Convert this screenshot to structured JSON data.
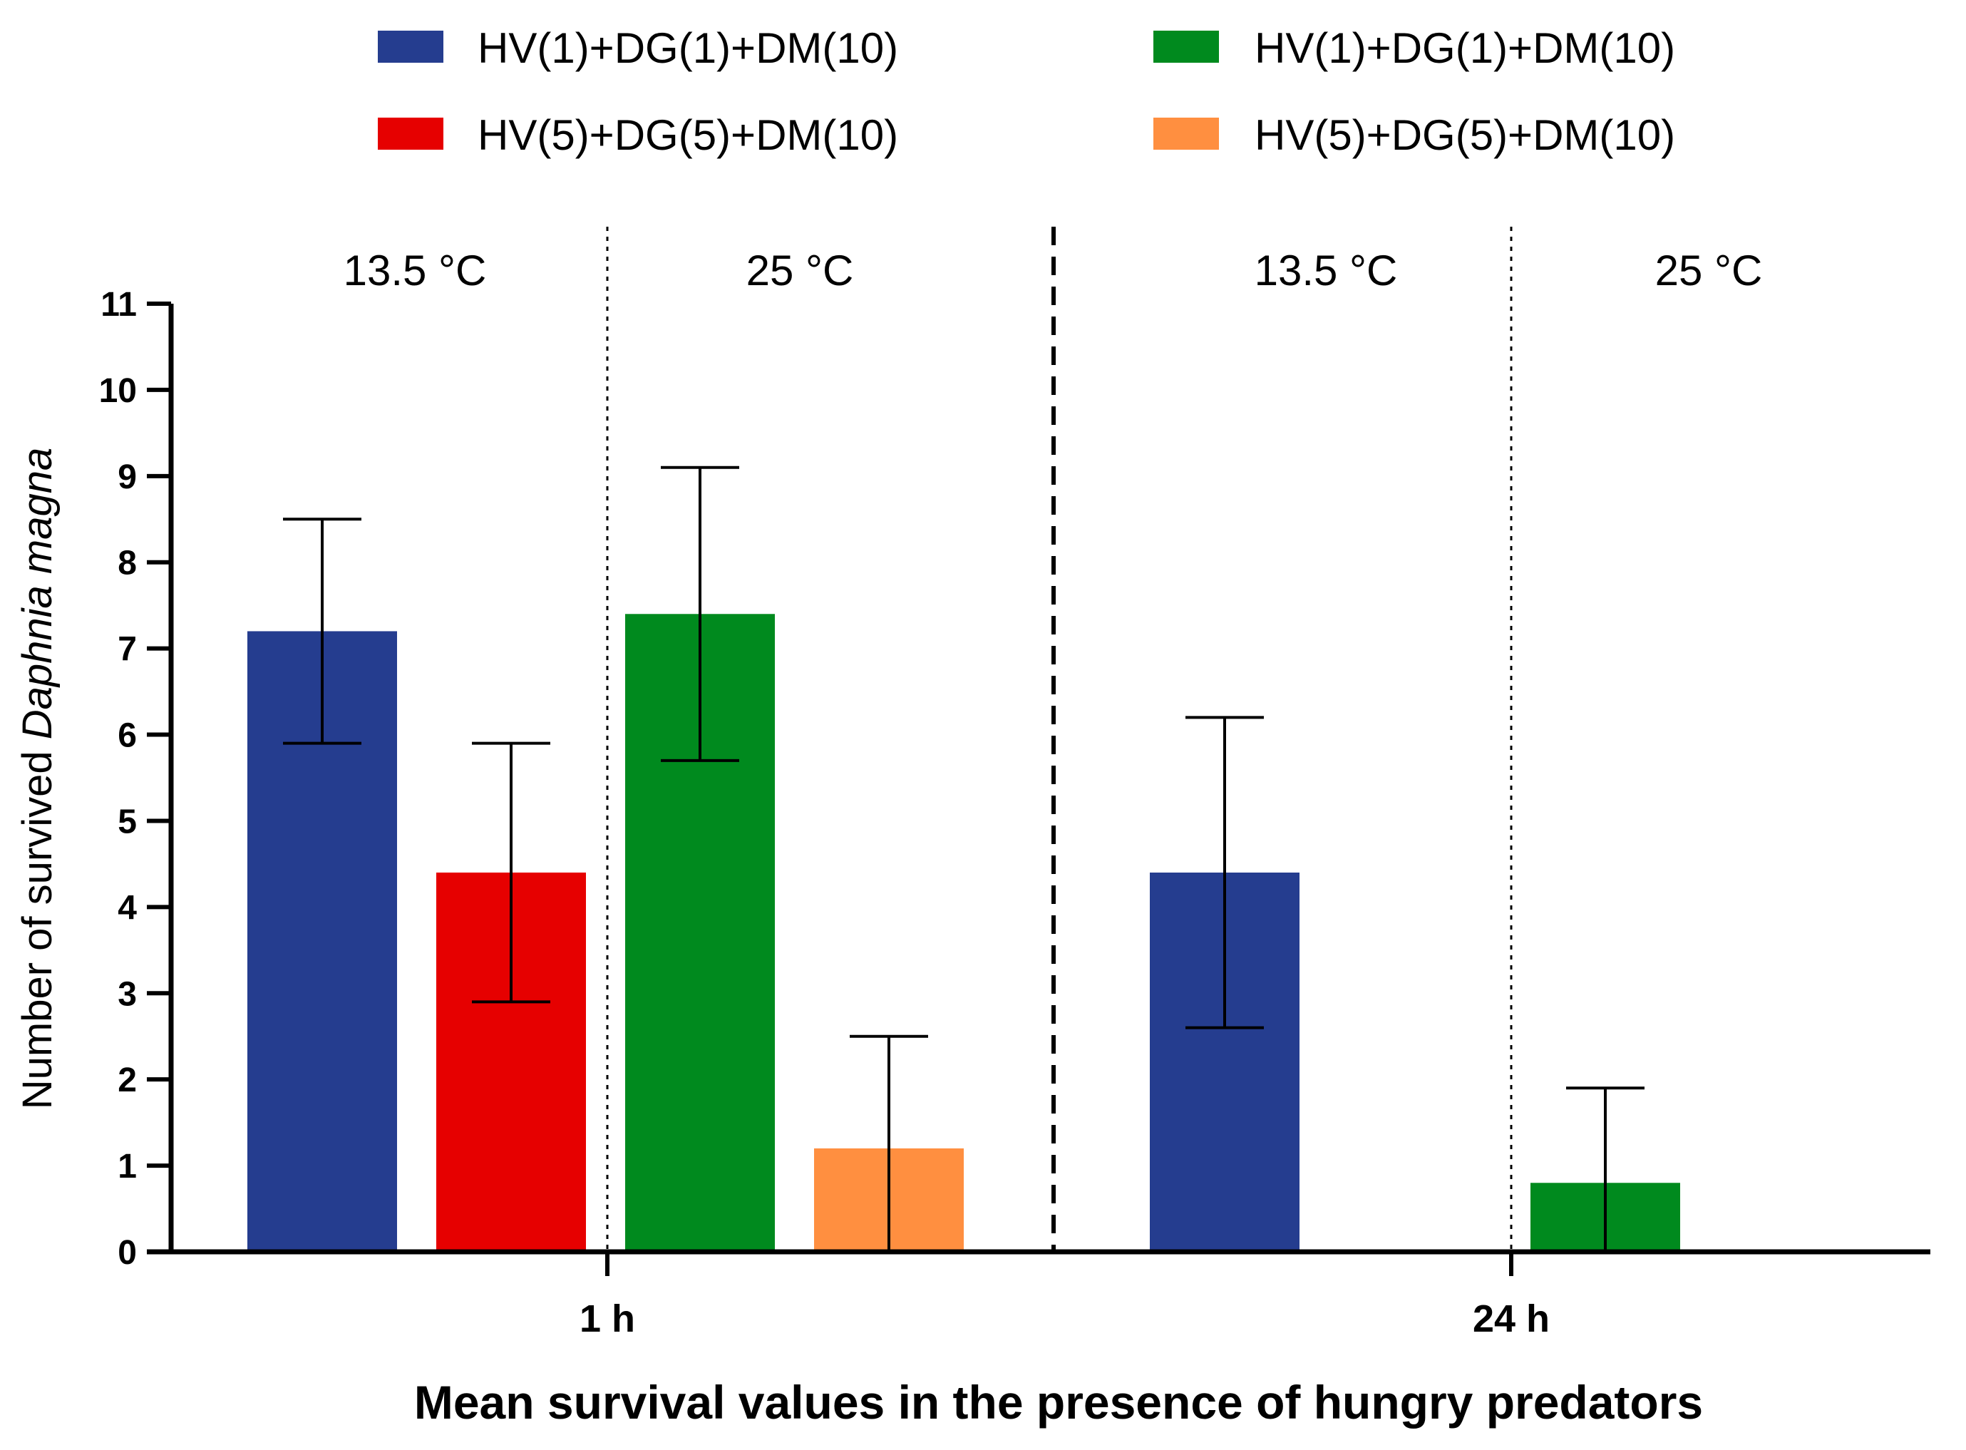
{
  "chart_data": {
    "type": "bar",
    "title": "",
    "xlabel": "Mean survival values in the presence of hungry predators",
    "ylabel_prefix": "Number of survived ",
    "ylabel_italic": "Daphnia magna",
    "ylim": [
      0,
      11
    ],
    "yticks": [
      "0",
      "1",
      "2",
      "3",
      "4",
      "5",
      "6",
      "7",
      "8",
      "9",
      "10",
      "11"
    ],
    "groups": [
      "1 h",
      "24 h"
    ],
    "temperatures": [
      "13.5 °C",
      "25 °C",
      "13.5 °C",
      "25 °C"
    ],
    "legend_position": "top",
    "series": [
      {
        "name": "HV(1)+DG(1)+DM(10)",
        "color": "#253D8F",
        "temperature": "13.5 °C",
        "values": [
          7.2,
          4.4
        ],
        "errors": [
          1.3,
          1.8
        ]
      },
      {
        "name": "HV(5)+DG(5)+DM(10)",
        "color": "#E60000",
        "temperature": "13.5 °C",
        "values": [
          4.4,
          0
        ],
        "errors": [
          1.5,
          0
        ]
      },
      {
        "name": "HV(1)+DG(1)+DM(10)",
        "color": "#008A1E",
        "temperature": "25 °C",
        "values": [
          7.4,
          0.8
        ],
        "errors": [
          1.7,
          1.1
        ]
      },
      {
        "name": "HV(5)+DG(5)+DM(10)",
        "color": "#FF8F40",
        "temperature": "25 °C",
        "values": [
          1.2,
          0
        ],
        "errors": [
          1.3,
          0
        ]
      }
    ]
  }
}
